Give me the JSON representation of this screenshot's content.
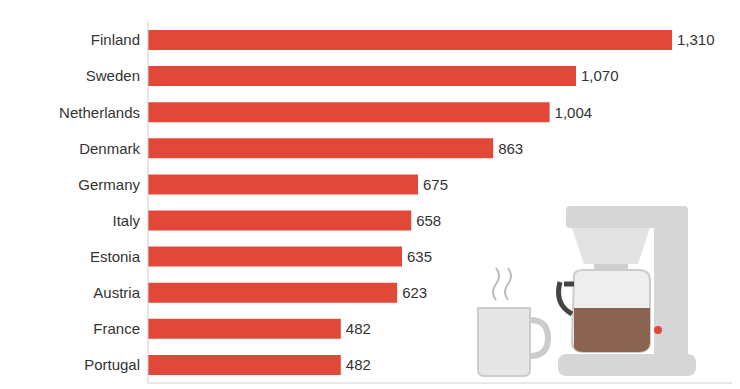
{
  "chart_data": {
    "type": "bar",
    "orientation": "horizontal",
    "categories": [
      "Finland",
      "Sweden",
      "Netherlands",
      "Denmark",
      "Germany",
      "Italy",
      "Estonia",
      "Austria",
      "France",
      "Portugal"
    ],
    "values": [
      1310,
      1070,
      1004,
      863,
      675,
      658,
      635,
      623,
      482,
      482
    ],
    "value_labels": [
      "1,310",
      "1,070",
      "1,004",
      "863",
      "675",
      "658",
      "635",
      "623",
      "482",
      "482"
    ],
    "color": "#e2483a",
    "xlim": [
      0,
      1460
    ],
    "data_labels": true,
    "tick_labels": "y",
    "grid": false
  }
}
